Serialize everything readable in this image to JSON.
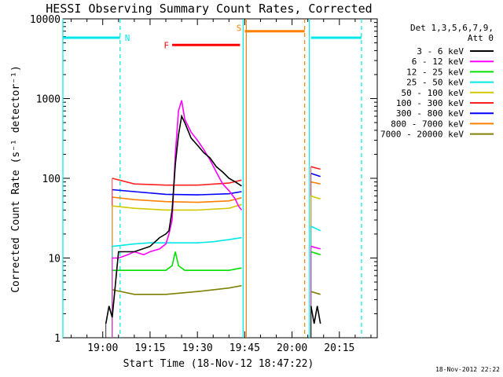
{
  "chart_data": {
    "type": "line",
    "title": "HESSI Observing Summary Count Rates, Corrected",
    "xlabel": "Start Time (18-Nov-12 18:47:22)",
    "ylabel": "Corrected Count Rate (s⁻¹ detector⁻¹)",
    "yscale": "log",
    "ylim": [
      1,
      10000
    ],
    "xlim": [
      "18:47:22",
      "20:27:00"
    ],
    "x_ticks": [
      "19:00",
      "19:15",
      "19:30",
      "19:45",
      "20:00",
      "20:15"
    ],
    "y_ticks": [
      "1",
      "10",
      "100",
      "1000",
      "10000"
    ],
    "legend": {
      "placement": "right",
      "title_line1": "Det 1,3,5,6,7,9,",
      "title_line2": "Att 0",
      "entries": [
        {
          "label": "3 - 6 keV",
          "color": "#000000"
        },
        {
          "label": "6 - 12 keV",
          "color": "#ff00ff"
        },
        {
          "label": "12 - 25 keV",
          "color": "#00e000"
        },
        {
          "label": "25 - 50 keV",
          "color": "#00e8e8"
        },
        {
          "label": "50 - 100 keV",
          "color": "#d4c800"
        },
        {
          "label": "100 - 300 keV",
          "color": "#ff2020"
        },
        {
          "label": "300 - 800 keV",
          "color": "#0000ff"
        },
        {
          "label": "800 - 7000 keV",
          "color": "#ff7f00"
        },
        {
          "label": "7000 - 20000 keV",
          "color": "#808000"
        }
      ]
    },
    "intervals": [
      {
        "flag": "N",
        "color": "#00e8e8",
        "segments": [
          [
            "18:47:22",
            "19:05:30"
          ],
          [
            "20:06:00",
            "20:22:00"
          ]
        ],
        "level": 5800
      },
      {
        "flag": "F",
        "color": "#ff0000",
        "segments": [
          [
            "19:22:00",
            "19:43:30"
          ]
        ],
        "level": 4700
      },
      {
        "flag": "S",
        "color": "#ff7f00",
        "segments": [
          [
            "19:45:00",
            "20:04:00"
          ]
        ],
        "level": 7000
      }
    ],
    "interval_boundaries": [
      {
        "time": "18:47:22",
        "color": "#00e8e8",
        "style": "solid"
      },
      {
        "time": "19:05:30",
        "color": "#00e8e8",
        "style": "dashed"
      },
      {
        "time": "19:44:30",
        "color": "#00e8e8",
        "style": "solid"
      },
      {
        "time": "19:45:30",
        "color": "#ff7f00",
        "style": "solid"
      },
      {
        "time": "20:04:00",
        "color": "#ff7f00",
        "style": "dashed"
      },
      {
        "time": "20:05:30",
        "color": "#00e8e8",
        "style": "solid"
      },
      {
        "time": "20:22:00",
        "color": "#00e8e8",
        "style": "dashed"
      }
    ],
    "series": [
      {
        "name": "3 - 6 keV",
        "color": "#000000",
        "segments": [
          {
            "x": [
              "19:01",
              "19:02",
              "19:03",
              "19:05",
              "19:10",
              "19:15",
              "19:18",
              "19:20",
              "19:21",
              "19:22",
              "19:23",
              "19:24",
              "19:25",
              "19:26",
              "19:28",
              "19:30",
              "19:32",
              "19:34",
              "19:36",
              "19:38",
              "19:40",
              "19:42",
              "19:43",
              "19:44"
            ],
            "y": [
              1.5,
              2.5,
              1.8,
              12,
              12,
              14,
              18,
              20,
              22,
              40,
              150,
              350,
              600,
              500,
              320,
              260,
              210,
              180,
              140,
              120,
              100,
              90,
              85,
              80
            ]
          },
          {
            "x": [
              "20:06",
              "20:07",
              "20:08",
              "20:09"
            ],
            "y": [
              2.5,
              1.5,
              2.5,
              1.5
            ]
          }
        ]
      },
      {
        "name": "6 - 12 keV",
        "color": "#ff00ff",
        "segments": [
          {
            "x": [
              "19:03",
              "19:05",
              "19:08",
              "19:10",
              "19:13",
              "19:15",
              "19:18",
              "19:20",
              "19:21",
              "19:22",
              "19:23",
              "19:24",
              "19:25",
              "19:26",
              "19:28",
              "19:30",
              "19:32",
              "19:34",
              "19:36",
              "19:38",
              "19:40",
              "19:42",
              "19:43",
              "19:44"
            ],
            "y": [
              10,
              10,
              11,
              12,
              11,
              12,
              13,
              15,
              20,
              30,
              200,
              700,
              950,
              550,
              380,
              300,
              230,
              170,
              120,
              85,
              70,
              55,
              45,
              40
            ]
          },
          {
            "x": [
              "20:06",
              "20:09"
            ],
            "y": [
              14,
              13
            ]
          }
        ]
      },
      {
        "name": "12 - 25 keV",
        "color": "#00e000",
        "segments": [
          {
            "x": [
              "19:03",
              "19:10",
              "19:20",
              "19:22",
              "19:23",
              "19:24",
              "19:26",
              "19:30",
              "19:40",
              "19:44"
            ],
            "y": [
              7,
              7,
              7,
              8,
              12,
              8,
              7,
              7,
              7,
              7.5
            ]
          },
          {
            "x": [
              "20:06",
              "20:09"
            ],
            "y": [
              12,
              11
            ]
          }
        ]
      },
      {
        "name": "25 - 50 keV",
        "color": "#00e8e8",
        "segments": [
          {
            "x": [
              "19:03",
              "19:10",
              "19:15",
              "19:20",
              "19:25",
              "19:30",
              "19:35",
              "19:40",
              "19:44"
            ],
            "y": [
              14,
              15,
              15.5,
              15.5,
              15.5,
              15.5,
              16,
              17,
              18
            ]
          },
          {
            "x": [
              "20:06",
              "20:09"
            ],
            "y": [
              25,
              22
            ]
          }
        ]
      },
      {
        "name": "50 - 100 keV",
        "color": "#d4c800",
        "segments": [
          {
            "x": [
              "19:03",
              "19:10",
              "19:20",
              "19:30",
              "19:40",
              "19:44"
            ],
            "y": [
              45,
              42,
              40,
              40,
              42,
              47
            ]
          },
          {
            "x": [
              "20:06",
              "20:09"
            ],
            "y": [
              60,
              55
            ]
          }
        ]
      },
      {
        "name": "100 - 300 keV",
        "color": "#ff2020",
        "segments": [
          {
            "x": [
              "19:03",
              "19:10",
              "19:20",
              "19:30",
              "19:40",
              "19:44"
            ],
            "y": [
              100,
              85,
              82,
              82,
              87,
              95
            ]
          },
          {
            "x": [
              "20:06",
              "20:09"
            ],
            "y": [
              140,
              130
            ]
          }
        ]
      },
      {
        "name": "300 - 800 keV",
        "color": "#0000ff",
        "segments": [
          {
            "x": [
              "19:03",
              "19:10",
              "19:20",
              "19:30",
              "19:40",
              "19:44"
            ],
            "y": [
              72,
              68,
              63,
              62,
              64,
              68
            ]
          },
          {
            "x": [
              "20:06",
              "20:09"
            ],
            "y": [
              115,
              105
            ]
          }
        ]
      },
      {
        "name": "800 - 7000 keV",
        "color": "#ff7f00",
        "segments": [
          {
            "x": [
              "19:03",
              "19:10",
              "19:20",
              "19:30",
              "19:40",
              "19:44"
            ],
            "y": [
              58,
              54,
              51,
              50,
              52,
              57
            ]
          },
          {
            "x": [
              "20:06",
              "20:09"
            ],
            "y": [
              90,
              85
            ]
          }
        ]
      },
      {
        "name": "7000 - 20000 keV",
        "color": "#808000",
        "segments": [
          {
            "x": [
              "19:03",
              "19:10",
              "19:20",
              "19:30",
              "19:40",
              "19:44"
            ],
            "y": [
              4,
              3.5,
              3.5,
              3.8,
              4.2,
              4.5
            ]
          },
          {
            "x": [
              "20:06",
              "20:09"
            ],
            "y": [
              3.8,
              3.5
            ]
          }
        ]
      }
    ]
  },
  "footer": {
    "date_stamp": "18-Nov-2012 22:22"
  }
}
